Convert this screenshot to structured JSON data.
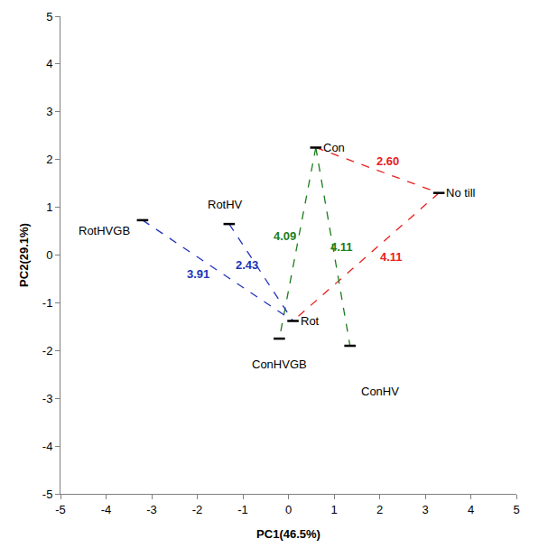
{
  "chart_data": {
    "type": "scatter",
    "x_label": "PC1(46.5%)",
    "y_label": "PC2(29.1%)",
    "xlim": [
      -5,
      5
    ],
    "ylim": [
      -5,
      5
    ],
    "xticks": [
      -5,
      -4,
      -3,
      -2,
      -1,
      0,
      1,
      2,
      3,
      4,
      5
    ],
    "yticks": [
      -5,
      -4,
      -3,
      -2,
      -1,
      0,
      1,
      2,
      3,
      4,
      5
    ],
    "grid": false,
    "marker": "dash",
    "color": "#000000",
    "points": [
      {
        "name": "Con",
        "x": 0.6,
        "y": 2.25
      },
      {
        "name": "No till",
        "x": 3.3,
        "y": 1.3
      },
      {
        "name": "Rot",
        "x": 0.1,
        "y": -1.38
      },
      {
        "name": "RotHV",
        "x": -1.3,
        "y": 0.65
      },
      {
        "name": "RotHVGB",
        "x": -3.2,
        "y": 0.73
      },
      {
        "name": "ConHVGB",
        "x": -0.2,
        "y": -1.75
      },
      {
        "name": "ConHV",
        "x": 1.35,
        "y": -1.9
      }
    ],
    "links": [
      {
        "from": "Con",
        "to": "No till",
        "value": 2.6,
        "label": "2.60",
        "color": "#e8201c",
        "line_style": "dashed"
      },
      {
        "from": "No till",
        "to": "Rot",
        "value": 4.11,
        "label": "4.11",
        "color": "#e8201c",
        "line_style": "dashed"
      },
      {
        "from": "Con",
        "to": "ConHVGB",
        "value": 4.09,
        "label": "4.09",
        "color": "#1a7d1a",
        "line_style": "dashed"
      },
      {
        "from": "Con",
        "to": "ConHV",
        "value": 4.11,
        "label": "4.11",
        "color": "#1a7d1a",
        "line_style": "dashed"
      },
      {
        "from": "RotHVGB",
        "to": "Rot",
        "value": 3.91,
        "label": "3.91",
        "color": "#2233b8",
        "line_style": "dashed"
      },
      {
        "from": "RotHV",
        "to": "Rot",
        "value": 2.43,
        "label": "2.43",
        "color": "#2233b8",
        "line_style": "dashed"
      }
    ]
  }
}
